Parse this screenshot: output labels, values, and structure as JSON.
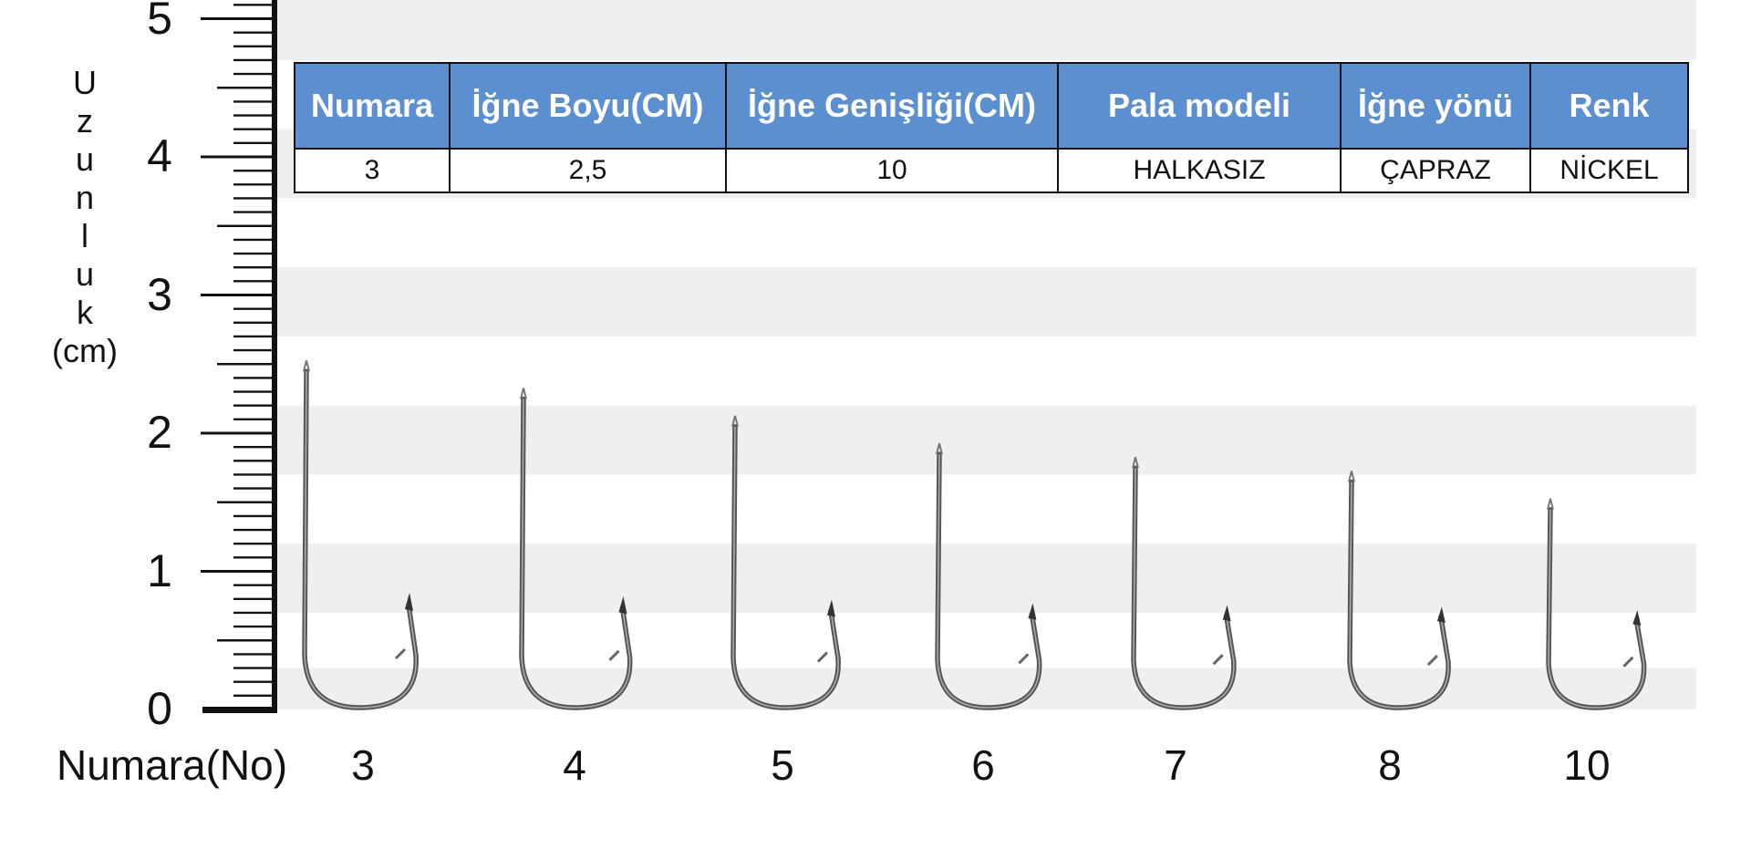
{
  "axis": {
    "title_letters": [
      "U",
      "z",
      "u",
      "n",
      "l",
      "u",
      "k"
    ],
    "unit": "(cm)",
    "y_ticks": [
      "0",
      "1",
      "2",
      "3",
      "4",
      "5"
    ],
    "y_range_cm": [
      0,
      5.5
    ],
    "x_caption": "Numara(No)"
  },
  "spec_table": {
    "headers": [
      "Numara",
      "İğne Boyu(CM)",
      "İğne Genişliği(CM)",
      "Pala modeli",
      "İğne yönü",
      "Renk"
    ],
    "row": [
      "3",
      "2,5",
      "10",
      "HALKASIZ",
      "ÇAPRAZ",
      "NİCKEL"
    ]
  },
  "hooks": [
    {
      "number": "3",
      "length_cm": 2.5
    },
    {
      "number": "4",
      "length_cm": 2.3
    },
    {
      "number": "5",
      "length_cm": 2.1
    },
    {
      "number": "6",
      "length_cm": 1.9
    },
    {
      "number": "7",
      "length_cm": 1.8
    },
    {
      "number": "8",
      "length_cm": 1.7
    },
    {
      "number": "10",
      "length_cm": 1.5
    }
  ],
  "colors": {
    "header_bg": "#5b8fd0",
    "band_gray": "#efefef",
    "ink": "#111111"
  }
}
